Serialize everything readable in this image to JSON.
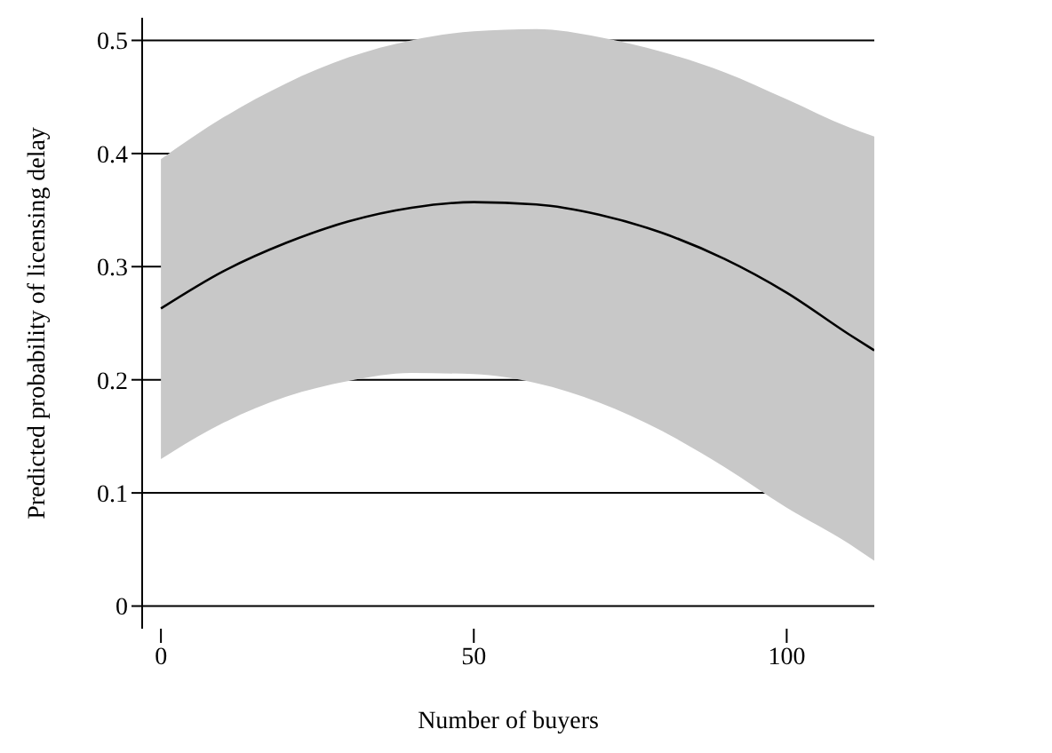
{
  "chart_data": {
    "type": "line",
    "xlabel": "Number of buyers",
    "ylabel": "Predicted probability of licensing delay",
    "x": [
      0,
      10,
      20,
      30,
      40,
      50,
      60,
      70,
      80,
      90,
      100,
      110,
      114
    ],
    "series": [
      {
        "color": "#000000",
        "values": [
          0.263,
          0.296,
          0.321,
          0.34,
          0.352,
          0.357,
          0.355,
          0.346,
          0.33,
          0.307,
          0.277,
          0.24,
          0.226
        ],
        "lower": [
          0.13,
          0.162,
          0.185,
          0.199,
          0.206,
          0.205,
          0.197,
          0.18,
          0.155,
          0.123,
          0.087,
          0.055,
          0.04
        ],
        "upper": [
          0.395,
          0.432,
          0.462,
          0.485,
          0.5,
          0.508,
          0.51,
          0.503,
          0.49,
          0.472,
          0.448,
          0.423,
          0.415
        ]
      }
    ],
    "xlim": [
      -3,
      114
    ],
    "xticks": [
      0,
      50,
      100
    ],
    "ylim": [
      -0.02,
      0.52
    ],
    "yticks": [
      0,
      0.1,
      0.2,
      0.3,
      0.4,
      0.5
    ],
    "grid": "y",
    "legend": false,
    "marker": "none",
    "line_style": "solid"
  }
}
